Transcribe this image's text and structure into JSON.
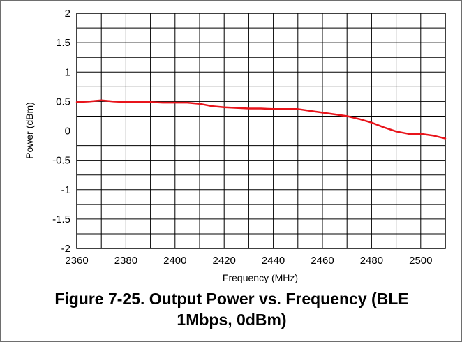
{
  "chart_data": {
    "type": "line",
    "xlabel": "Frequency (MHz)",
    "ylabel": "Power (dBm)",
    "xlim": [
      2360,
      2510
    ],
    "ylim": [
      -2,
      2
    ],
    "x_ticks": [
      "2360",
      "2380",
      "2400",
      "2420",
      "2440",
      "2460",
      "2480",
      "2500"
    ],
    "y_ticks": [
      "2",
      "1.5",
      "1",
      "0.5",
      "0",
      "-0.5",
      "-1",
      "-1.5",
      "-2"
    ],
    "grid": true,
    "line_color": "#e8141b",
    "series": [
      {
        "x": [
          2360,
          2365,
          2370,
          2375,
          2380,
          2385,
          2390,
          2395,
          2400,
          2405,
          2410,
          2415,
          2420,
          2425,
          2430,
          2435,
          2440,
          2445,
          2450,
          2455,
          2460,
          2465,
          2470,
          2475,
          2480,
          2485,
          2490,
          2495,
          2500,
          2505,
          2510
        ],
        "y": [
          0.49,
          0.5,
          0.52,
          0.5,
          0.49,
          0.49,
          0.49,
          0.48,
          0.48,
          0.48,
          0.46,
          0.42,
          0.4,
          0.39,
          0.38,
          0.38,
          0.37,
          0.37,
          0.37,
          0.34,
          0.31,
          0.28,
          0.25,
          0.2,
          0.14,
          0.06,
          -0.01,
          -0.05,
          -0.05,
          -0.08,
          -0.13
        ]
      }
    ]
  },
  "caption": {
    "line1": "Figure 7-25. Output Power vs. Frequency (BLE",
    "line2": "1Mbps, 0dBm)"
  }
}
